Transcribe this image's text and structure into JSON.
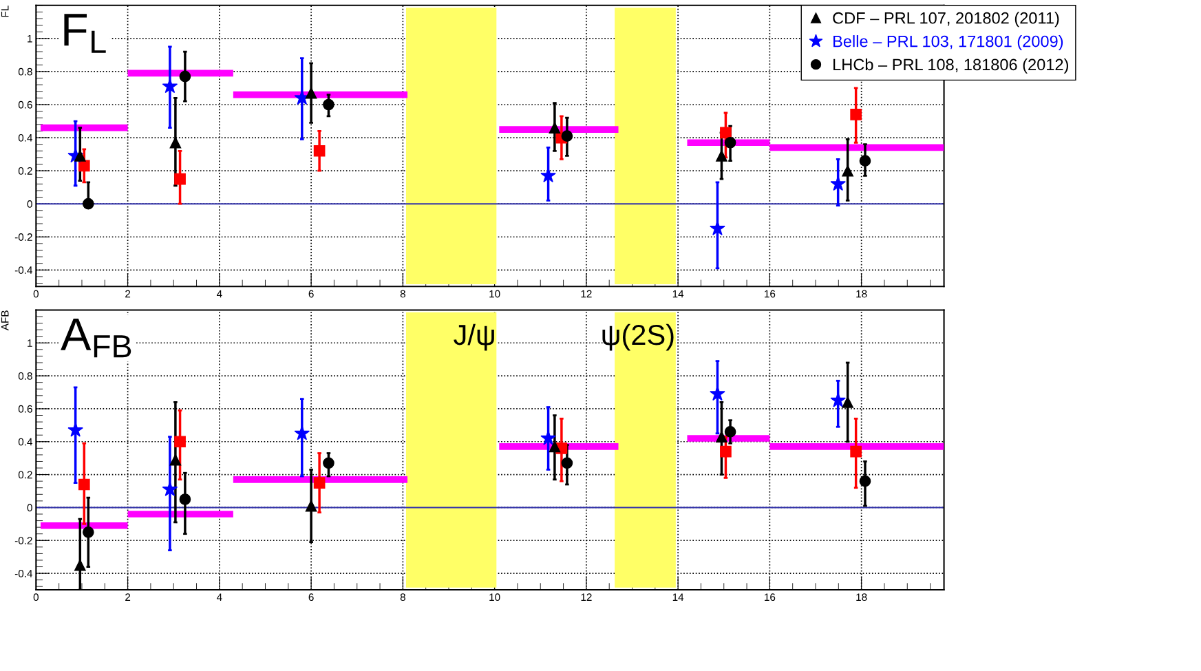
{
  "chart_data": [
    {
      "type": "scatter",
      "title": "F$_{L}$",
      "ylabel": "FL",
      "xlim": [
        0,
        19.8
      ],
      "ylim": [
        -0.5,
        1.2
      ],
      "xticks": [
        0,
        2,
        4,
        6,
        8,
        10,
        12,
        14,
        16,
        18
      ],
      "yticks": [
        -0.4,
        -0.2,
        0,
        0.2,
        0.4,
        0.6,
        0.8,
        1
      ],
      "grid": true,
      "legend": "top right",
      "series": [
        {
          "name": "CDF – PRL 107, 201802 (2011)",
          "color": "#000000",
          "marker": "triangle",
          "x": [
            0.96,
            3.04,
            6.0,
            11.31,
            14.95,
            17.7
          ],
          "values": [
            0.29,
            0.37,
            0.67,
            0.46,
            0.29,
            0.2
          ],
          "errors": [
            [
              0.14,
              0.46
            ],
            [
              0.11,
              0.64
            ],
            [
              0.49,
              0.85
            ],
            [
              0.32,
              0.61
            ],
            [
              0.15,
              0.43
            ],
            [
              0.02,
              0.39
            ]
          ]
        },
        {
          "name": "Belle – PRL 103, 171801 (2009)",
          "color": "#0000ff",
          "marker": "star",
          "x": [
            0.86,
            2.92,
            5.8,
            11.17,
            14.86,
            17.49
          ],
          "values": [
            0.29,
            0.71,
            0.64,
            0.17,
            -0.15,
            0.12
          ],
          "errors": [
            [
              0.11,
              0.5
            ],
            [
              0.46,
              0.95
            ],
            [
              0.39,
              0.88
            ],
            [
              0.02,
              0.34
            ],
            [
              -0.39,
              0.13
            ],
            [
              -0.01,
              0.27
            ]
          ]
        },
        {
          "name": "LHCb – PRL 108, 181806 (2012)",
          "color": "#000000",
          "marker": "circle",
          "x": [
            1.14,
            3.25,
            6.38,
            11.58,
            15.14,
            18.08
          ],
          "values": [
            0.0,
            0.77,
            0.6,
            0.41,
            0.37,
            0.26
          ],
          "errors": [
            [
              0.0,
              0.13
            ],
            [
              0.62,
              0.92
            ],
            [
              0.53,
              0.66
            ],
            [
              0.29,
              0.52
            ],
            [
              0.26,
              0.47
            ],
            [
              0.17,
              0.36
            ]
          ]
        },
        {
          "color": "#ff0000",
          "marker": "square",
          "x": [
            1.05,
            3.14,
            6.18,
            11.46,
            15.04,
            17.88
          ],
          "values": [
            0.23,
            0.15,
            0.32,
            0.4,
            0.43,
            0.54
          ],
          "errors": [
            [
              0.13,
              0.33
            ],
            [
              0.0,
              0.32
            ],
            [
              0.2,
              0.44
            ],
            [
              0.27,
              0.53
            ],
            [
              0.28,
              0.55
            ],
            [
              0.37,
              0.7
            ]
          ]
        },
        {
          "type": "line",
          "color": "#ff00ff",
          "x": [
            0.1,
            2
          ],
          "values": [
            0.46,
            0.46
          ]
        },
        {
          "type": "line",
          "color": "#ff00ff",
          "x": [
            2,
            4.3
          ],
          "values": [
            0.79,
            0.79
          ]
        },
        {
          "type": "line",
          "color": "#ff00ff",
          "x": [
            4.3,
            8.1
          ],
          "values": [
            0.66,
            0.66
          ]
        },
        {
          "type": "line",
          "color": "#ff00ff",
          "x": [
            10.1,
            12.7
          ],
          "values": [
            0.45,
            0.45
          ]
        },
        {
          "type": "line",
          "color": "#ff00ff",
          "x": [
            14.2,
            16
          ],
          "values": [
            0.37,
            0.37
          ]
        },
        {
          "type": "line",
          "color": "#ff00ff",
          "x": [
            16,
            19.8
          ],
          "values": [
            0.34,
            0.34
          ]
        }
      ],
      "bands": [
        {
          "axis": "x",
          "from": 8.08,
          "to": 10.03,
          "color": "#ffff66"
        },
        {
          "axis": "x",
          "from": 12.63,
          "to": 13.94,
          "color": "#ffff66"
        }
      ],
      "ref_lines": [
        {
          "axis": "y",
          "value": 0,
          "color": "#3333aa",
          "line_style": "solid"
        }
      ]
    },
    {
      "type": "scatter",
      "title": "A$_{FB}$",
      "ylabel": "AFB",
      "xlim": [
        0,
        19.8
      ],
      "ylim": [
        -0.5,
        1.2
      ],
      "xticks": [
        0,
        2,
        4,
        6,
        8,
        10,
        12,
        14,
        16,
        18
      ],
      "yticks": [
        -0.4,
        -0.2,
        0,
        0.2,
        0.4,
        0.6,
        0.8,
        1
      ],
      "grid": true,
      "series": [
        {
          "color": "#000000",
          "marker": "triangle",
          "x": [
            0.96,
            3.04,
            6.0,
            11.31,
            14.95,
            17.7
          ],
          "values": [
            -0.35,
            0.29,
            0.01,
            0.37,
            0.43,
            0.64
          ],
          "errors": [
            [
              -0.5,
              -0.07
            ],
            [
              -0.09,
              0.64
            ],
            [
              -0.21,
              0.23
            ],
            [
              0.17,
              0.56
            ],
            [
              0.2,
              0.64
            ],
            [
              0.4,
              0.88
            ]
          ]
        },
        {
          "color": "#0000ff",
          "marker": "star",
          "x": [
            0.86,
            2.92,
            5.8,
            11.17,
            14.86,
            17.49
          ],
          "values": [
            0.47,
            0.11,
            0.45,
            0.42,
            0.69,
            0.65
          ],
          "errors": [
            [
              0.15,
              0.73
            ],
            [
              -0.26,
              0.43
            ],
            [
              0.19,
              0.66
            ],
            [
              0.23,
              0.61
            ],
            [
              0.45,
              0.89
            ],
            [
              0.49,
              0.77
            ]
          ]
        },
        {
          "color": "#000000",
          "marker": "circle",
          "x": [
            1.14,
            3.25,
            6.38,
            11.58,
            15.14,
            18.08
          ],
          "values": [
            -0.15,
            0.05,
            0.27,
            0.27,
            0.46,
            0.16
          ],
          "errors": [
            [
              -0.36,
              0.06
            ],
            [
              -0.16,
              0.21
            ],
            [
              0.19,
              0.33
            ],
            [
              0.14,
              0.38
            ],
            [
              0.39,
              0.53
            ],
            [
              0.01,
              0.28
            ]
          ]
        },
        {
          "color": "#ff0000",
          "marker": "square",
          "x": [
            1.05,
            3.14,
            6.18,
            11.46,
            15.04,
            17.88
          ],
          "values": [
            0.14,
            0.4,
            0.15,
            0.36,
            0.34,
            0.34
          ],
          "errors": [
            [
              -0.1,
              0.39
            ],
            [
              0.17,
              0.59
            ],
            [
              -0.03,
              0.33
            ],
            [
              0.16,
              0.54
            ],
            [
              0.18,
              0.43
            ],
            [
              0.12,
              0.54
            ]
          ]
        },
        {
          "type": "line",
          "color": "#ff00ff",
          "x": [
            0.1,
            2
          ],
          "values": [
            -0.11,
            -0.11
          ]
        },
        {
          "type": "line",
          "color": "#ff00ff",
          "x": [
            2,
            4.3
          ],
          "values": [
            -0.04,
            -0.04
          ]
        },
        {
          "type": "line",
          "color": "#ff00ff",
          "x": [
            4.3,
            8.1
          ],
          "values": [
            0.17,
            0.17
          ]
        },
        {
          "type": "line",
          "color": "#ff00ff",
          "x": [
            10.1,
            12.7
          ],
          "values": [
            0.37,
            0.37
          ]
        },
        {
          "type": "line",
          "color": "#ff00ff",
          "x": [
            14.2,
            16
          ],
          "values": [
            0.42,
            0.42
          ]
        },
        {
          "type": "line",
          "color": "#ff00ff",
          "x": [
            16,
            19.8
          ],
          "values": [
            0.37,
            0.37
          ]
        }
      ],
      "bands": [
        {
          "axis": "x",
          "from": 8.08,
          "to": 10.03,
          "color": "#ffff66"
        },
        {
          "axis": "x",
          "from": 12.63,
          "to": 13.94,
          "color": "#ffff66"
        }
      ],
      "ref_lines": [
        {
          "axis": "y",
          "value": 0,
          "color": "#3333aa",
          "line_style": "solid"
        }
      ],
      "annotations": [
        "J/ψ",
        "ψ(2S)"
      ]
    }
  ]
}
